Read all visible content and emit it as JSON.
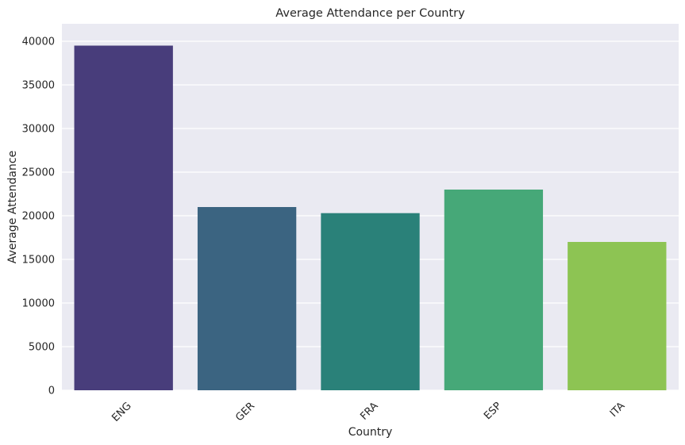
{
  "chart_data": {
    "type": "bar",
    "title": "Average Attendance per Country",
    "xlabel": "Country",
    "ylabel": "Average Attendance",
    "categories": [
      "ENG",
      "GER",
      "FRA",
      "ESP",
      "ITA"
    ],
    "values": [
      39500,
      21000,
      20300,
      23000,
      17000
    ],
    "colors": [
      "#483d7b",
      "#3b6481",
      "#2a8179",
      "#46a878",
      "#8dc453"
    ],
    "ylim": [
      0,
      42000
    ],
    "yticks": [
      0,
      5000,
      10000,
      15000,
      20000,
      25000,
      30000,
      35000,
      40000
    ],
    "ytick_labels": [
      "0",
      "5000",
      "10000",
      "15000",
      "20000",
      "25000",
      "30000",
      "35000",
      "40000"
    ],
    "grid": true,
    "background_color": "#eaeaf2",
    "grid_color": "#ffffff",
    "x_tick_rotation": 45
  }
}
